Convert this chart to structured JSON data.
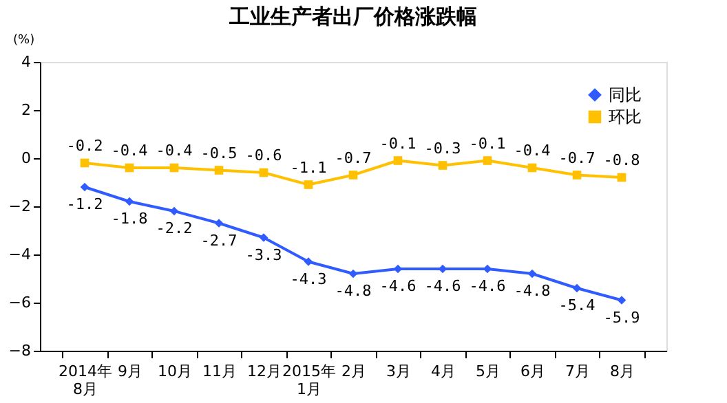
{
  "chart_data": {
    "type": "line",
    "title": "工业生产者出厂价格涨跌幅",
    "ylabel": "(%)",
    "categories": [
      "2014年\n8月",
      "9月",
      "10月",
      "11月",
      "12月",
      "2015年\n1月",
      "2月",
      "3月",
      "4月",
      "5月",
      "6月",
      "7月",
      "8月"
    ],
    "series": [
      {
        "name": "同比",
        "color": "#2f5bff",
        "marker": "diamond",
        "values": [
          -1.2,
          -1.8,
          -2.2,
          -2.7,
          -3.3,
          -4.3,
          -4.8,
          -4.6,
          -4.6,
          -4.6,
          -4.8,
          -5.4,
          -5.9
        ]
      },
      {
        "name": "环比",
        "color": "#ffc000",
        "marker": "square",
        "values": [
          -0.2,
          -0.4,
          -0.4,
          -0.5,
          -0.6,
          -1.1,
          -0.7,
          -0.1,
          -0.3,
          -0.1,
          -0.4,
          -0.7,
          -0.8
        ]
      }
    ],
    "ylim": [
      -8,
      4
    ],
    "yticks": [
      -8,
      -6,
      -4,
      -2,
      0,
      2,
      4
    ],
    "grid": false,
    "legend": "top right",
    "data_labels": true
  }
}
